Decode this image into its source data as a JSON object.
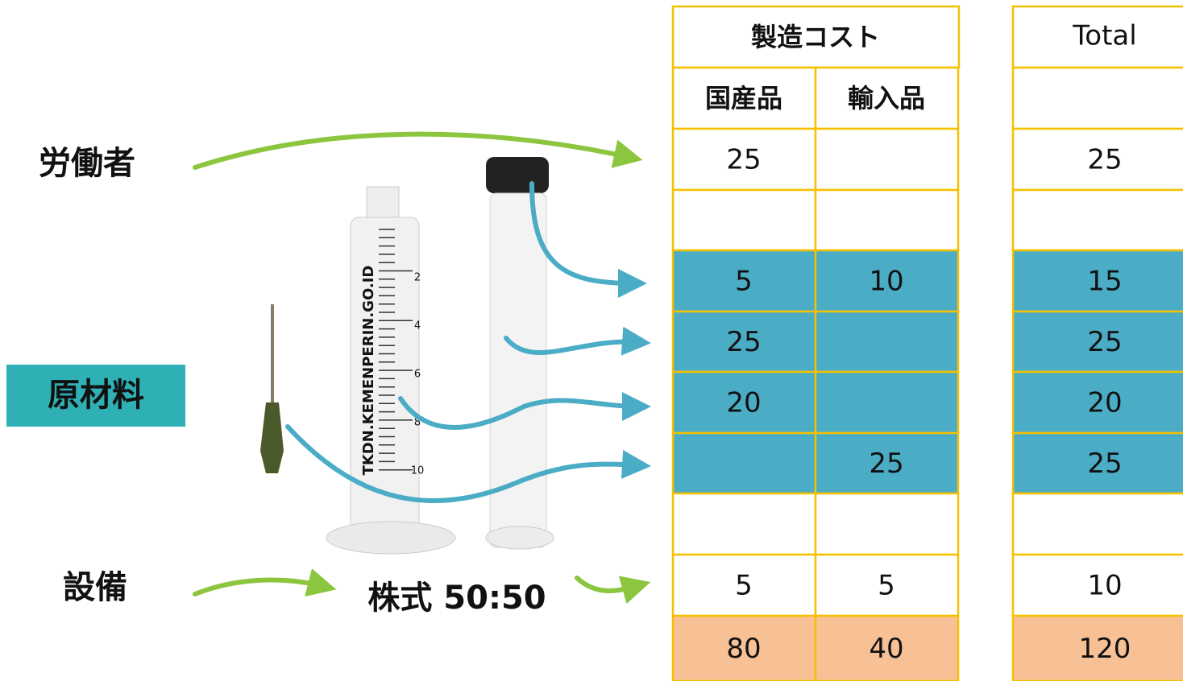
{
  "labels": {
    "labor": "労働者",
    "materials": "原材料",
    "equipment": "設備",
    "shares": "株式 50:50"
  },
  "syringe": {
    "brand": "TKDN.KEMENPERIN.GO.ID",
    "scale": [
      "2",
      "4",
      "6",
      "8",
      "10"
    ]
  },
  "table": {
    "title": "製造コスト",
    "columns": [
      "国産品",
      "輸入品"
    ],
    "total_title": "Total",
    "rows": [
      [
        25,
        null,
        25
      ],
      [
        null,
        null,
        null
      ],
      [
        5,
        10,
        15
      ],
      [
        25,
        null,
        25
      ],
      [
        20,
        null,
        20
      ],
      [
        null,
        25,
        25
      ],
      [
        null,
        null,
        null
      ],
      [
        5,
        5,
        10
      ],
      [
        80,
        40,
        120
      ]
    ]
  }
}
